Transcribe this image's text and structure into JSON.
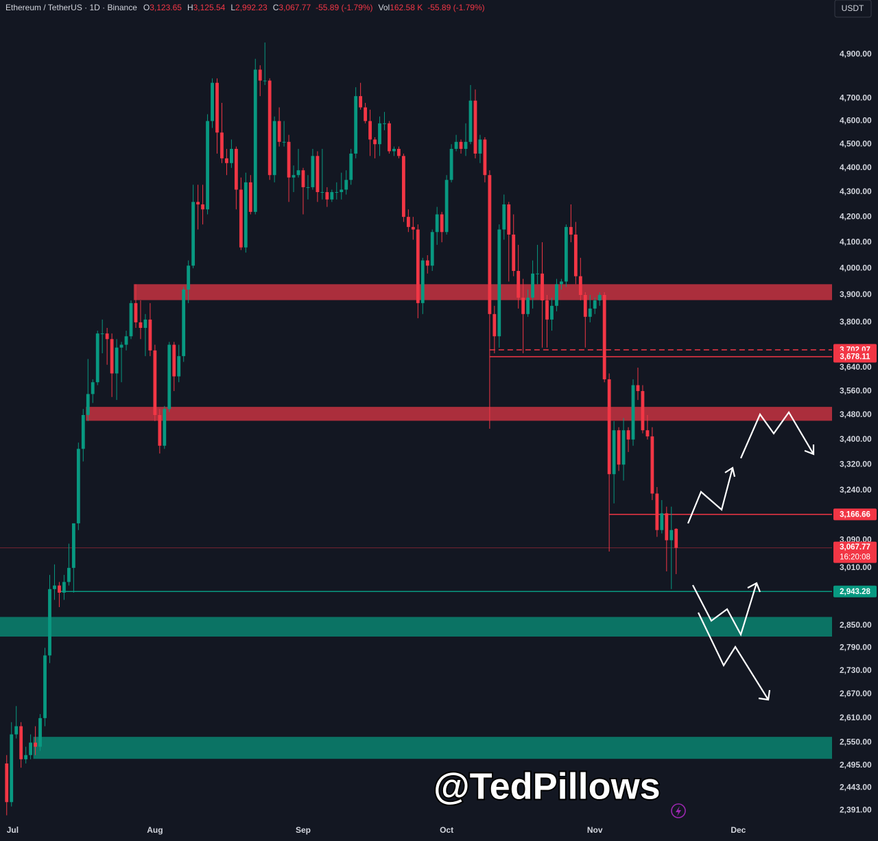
{
  "header": {
    "symbol": "Ethereum / TetherUS · 1D · Binance",
    "fields": [
      {
        "key": "O",
        "value": "3,123.65"
      },
      {
        "key": "H",
        "value": "3,125.54"
      },
      {
        "key": "L",
        "value": "2,992.23"
      },
      {
        "key": "C",
        "value": "3,067.77"
      }
    ],
    "change": "-55.89 (-1.79%)",
    "volume": {
      "key": "Vol",
      "value": "162.58 K"
    },
    "volume_change": "-55.89 (-1.79%)"
  },
  "currency_button": "USDT",
  "watermark": "@TedPillows",
  "chart_data": {
    "type": "candlestick",
    "up_color": "#089981",
    "down_color": "#f23645",
    "log_scale": true,
    "grid": false,
    "x": [
      0,
      1,
      2,
      3,
      4,
      5,
      6,
      7,
      8,
      9,
      10,
      11,
      12,
      13,
      14,
      15,
      16,
      17,
      18,
      19,
      20,
      21,
      22,
      23,
      24,
      25,
      26,
      27,
      28,
      29,
      30,
      31,
      32,
      33,
      34,
      35,
      36,
      37,
      38,
      39,
      40,
      41,
      42,
      43,
      44,
      45,
      46,
      47,
      48,
      49,
      50,
      51,
      52,
      53,
      54,
      55,
      56,
      57,
      58,
      59,
      60,
      61,
      62,
      63,
      64,
      65,
      66,
      67,
      68,
      69,
      70,
      71,
      72,
      73,
      74,
      75,
      76,
      77,
      78,
      79,
      80,
      81,
      82,
      83,
      84,
      85,
      86,
      87,
      88,
      89,
      90,
      91,
      92,
      93,
      94,
      95,
      96,
      97,
      98,
      99,
      100,
      101,
      102,
      103,
      104,
      105,
      106,
      107,
      108,
      109,
      110,
      111,
      112,
      113,
      114,
      115,
      116,
      117,
      118,
      119,
      120,
      121,
      122,
      123,
      124,
      125,
      126,
      127,
      128,
      129,
      130,
      131,
      132,
      133,
      134,
      135,
      136,
      137,
      138,
      139,
      140
    ],
    "candles": [
      [
        2500,
        2520,
        2380,
        2410
      ],
      [
        2410,
        2600,
        2400,
        2570
      ],
      [
        2570,
        2640,
        2560,
        2590
      ],
      [
        2590,
        2600,
        2490,
        2510
      ],
      [
        2510,
        2540,
        2500,
        2520
      ],
      [
        2520,
        2570,
        2510,
        2550
      ],
      [
        2550,
        2590,
        2520,
        2540
      ],
      [
        2540,
        2620,
        2530,
        2610
      ],
      [
        2610,
        2790,
        2590,
        2770
      ],
      [
        2770,
        2990,
        2750,
        2950
      ],
      [
        2950,
        3020,
        2920,
        2960
      ],
      [
        2960,
        2970,
        2900,
        2940
      ],
      [
        2940,
        2990,
        2920,
        2970
      ],
      [
        2970,
        3080,
        2960,
        3010
      ],
      [
        3010,
        3140,
        2940,
        3140
      ],
      [
        3140,
        3390,
        3120,
        3370
      ],
      [
        3370,
        3500,
        3330,
        3480
      ],
      [
        3480,
        3670,
        3460,
        3550
      ],
      [
        3550,
        3600,
        3520,
        3590
      ],
      [
        3590,
        3770,
        3580,
        3760
      ],
      [
        3760,
        3810,
        3690,
        3760
      ],
      [
        3760,
        3780,
        3650,
        3740
      ],
      [
        3740,
        3760,
        3540,
        3620
      ],
      [
        3620,
        3740,
        3530,
        3710
      ],
      [
        3710,
        3730,
        3590,
        3720
      ],
      [
        3720,
        3770,
        3700,
        3750
      ],
      [
        3750,
        3880,
        3740,
        3870
      ],
      [
        3870,
        3940,
        3780,
        3800
      ],
      [
        3800,
        3880,
        3740,
        3780
      ],
      [
        3780,
        3830,
        3680,
        3810
      ],
      [
        3810,
        3870,
        3680,
        3700
      ],
      [
        3700,
        3720,
        3460,
        3480
      ],
      [
        3480,
        3500,
        3355,
        3380
      ],
      [
        3380,
        3510,
        3370,
        3500
      ],
      [
        3500,
        3730,
        3490,
        3720
      ],
      [
        3720,
        3730,
        3560,
        3610
      ],
      [
        3610,
        3720,
        3590,
        3680
      ],
      [
        3680,
        3930,
        3660,
        3920
      ],
      [
        3920,
        4030,
        3870,
        4010
      ],
      [
        4010,
        4330,
        4000,
        4260
      ],
      [
        4260,
        4330,
        4150,
        4250
      ],
      [
        4250,
        4330,
        4170,
        4230
      ],
      [
        4230,
        4630,
        4210,
        4600
      ],
      [
        4600,
        4790,
        4570,
        4770
      ],
      [
        4770,
        4790,
        4460,
        4550
      ],
      [
        4550,
        4680,
        4420,
        4440
      ],
      [
        4440,
        4480,
        4370,
        4420
      ],
      [
        4420,
        4520,
        4400,
        4480
      ],
      [
        4480,
        4490,
        4230,
        4310
      ],
      [
        4310,
        4360,
        4070,
        4080
      ],
      [
        4080,
        4380,
        4060,
        4340
      ],
      [
        4340,
        4370,
        4210,
        4220
      ],
      [
        4220,
        4880,
        4210,
        4830
      ],
      [
        4830,
        4850,
        4710,
        4780
      ],
      [
        4780,
        4956,
        4760,
        4780
      ],
      [
        4780,
        4790,
        4350,
        4370
      ],
      [
        4370,
        4620,
        4340,
        4600
      ],
      [
        4600,
        4660,
        4490,
        4510
      ],
      [
        4510,
        4600,
        4490,
        4510
      ],
      [
        4510,
        4540,
        4260,
        4360
      ],
      [
        4360,
        4410,
        4300,
        4370
      ],
      [
        4370,
        4480,
        4360,
        4390
      ],
      [
        4390,
        4400,
        4210,
        4320
      ],
      [
        4320,
        4370,
        4270,
        4320
      ],
      [
        4320,
        4480,
        4310,
        4450
      ],
      [
        4450,
        4470,
        4260,
        4300
      ],
      [
        4300,
        4480,
        4270,
        4300
      ],
      [
        4300,
        4320,
        4240,
        4270
      ],
      [
        4270,
        4310,
        4260,
        4300
      ],
      [
        4300,
        4340,
        4270,
        4300
      ],
      [
        4300,
        4380,
        4270,
        4310
      ],
      [
        4310,
        4390,
        4290,
        4350
      ],
      [
        4350,
        4480,
        4330,
        4460
      ],
      [
        4460,
        4750,
        4440,
        4710
      ],
      [
        4710,
        4770,
        4650,
        4660
      ],
      [
        4660,
        4680,
        4590,
        4600
      ],
      [
        4600,
        4650,
        4450,
        4520
      ],
      [
        4520,
        4530,
        4440,
        4500
      ],
      [
        4500,
        4620,
        4450,
        4590
      ],
      [
        4590,
        4640,
        4560,
        4590
      ],
      [
        4590,
        4600,
        4460,
        4470
      ],
      [
        4470,
        4490,
        4450,
        4480
      ],
      [
        4480,
        4490,
        4440,
        4450
      ],
      [
        4450,
        4460,
        4180,
        4200
      ],
      [
        4200,
        4230,
        4140,
        4160
      ],
      [
        4160,
        4200,
        4110,
        4150
      ],
      [
        4150,
        4170,
        3815,
        3870
      ],
      [
        3870,
        4040,
        3830,
        4030
      ],
      [
        4030,
        4050,
        3980,
        4010
      ],
      [
        4010,
        4150,
        3990,
        4140
      ],
      [
        4140,
        4240,
        4090,
        4210
      ],
      [
        4210,
        4220,
        4100,
        4140
      ],
      [
        4140,
        4370,
        4130,
        4350
      ],
      [
        4350,
        4500,
        4340,
        4480
      ],
      [
        4480,
        4540,
        4470,
        4510
      ],
      [
        4510,
        4520,
        4460,
        4480
      ],
      [
        4480,
        4590,
        4450,
        4510
      ],
      [
        4510,
        4760,
        4500,
        4690
      ],
      [
        4690,
        4740,
        4440,
        4460
      ],
      [
        4460,
        4540,
        4420,
        4520
      ],
      [
        4520,
        4530,
        4340,
        4370
      ],
      [
        4370,
        4390,
        3435,
        3830
      ],
      [
        3830,
        3860,
        3690,
        3750
      ],
      [
        3750,
        4170,
        3710,
        4150
      ],
      [
        4150,
        4290,
        4110,
        4250
      ],
      [
        4250,
        4260,
        3950,
        4130
      ],
      [
        4130,
        4210,
        3970,
        3990
      ],
      [
        3990,
        4090,
        3850,
        3890
      ],
      [
        3890,
        3960,
        3690,
        3830
      ],
      [
        3830,
        3920,
        3820,
        3890
      ],
      [
        3890,
        4030,
        3850,
        3980
      ],
      [
        3980,
        4090,
        3940,
        3980
      ],
      [
        3980,
        4100,
        3710,
        3880
      ],
      [
        3880,
        3900,
        3710,
        3810
      ],
      [
        3810,
        3890,
        3770,
        3860
      ],
      [
        3860,
        3960,
        3840,
        3940
      ],
      [
        3940,
        3960,
        3920,
        3950
      ],
      [
        3950,
        4170,
        3930,
        4160
      ],
      [
        4160,
        4250,
        4100,
        4130
      ],
      [
        4130,
        4180,
        3940,
        3970
      ],
      [
        3970,
        4040,
        3880,
        3900
      ],
      [
        3900,
        3910,
        3710,
        3820
      ],
      [
        3820,
        3900,
        3800,
        3850
      ],
      [
        3850,
        3890,
        3830,
        3880
      ],
      [
        3880,
        3910,
        3860,
        3900
      ],
      [
        3900,
        3910,
        3590,
        3600
      ],
      [
        3600,
        3620,
        3057,
        3290
      ],
      [
        3290,
        3460,
        3200,
        3430
      ],
      [
        3430,
        3440,
        3300,
        3320
      ],
      [
        3320,
        3470,
        3270,
        3430
      ],
      [
        3430,
        3440,
        3360,
        3400
      ],
      [
        3400,
        3600,
        3380,
        3580
      ],
      [
        3580,
        3640,
        3530,
        3560
      ],
      [
        3560,
        3580,
        3420,
        3430
      ],
      [
        3430,
        3480,
        3400,
        3410
      ],
      [
        3410,
        3440,
        3210,
        3230
      ],
      [
        3230,
        3250,
        3100,
        3120
      ],
      [
        3120,
        3210,
        3110,
        3170
      ],
      [
        3170,
        3190,
        3000,
        3090
      ],
      [
        3090,
        3190,
        2950,
        3120
      ],
      [
        3123.65,
        3125.54,
        2992.23,
        3067.77
      ]
    ],
    "xlim": [
      -1.4,
      172.6
    ],
    "xticks": [
      {
        "value": 0,
        "label": "Jul"
      },
      {
        "value": 31,
        "label": "Aug"
      },
      {
        "value": 62,
        "label": "Sep"
      },
      {
        "value": 92,
        "label": "Oct"
      },
      {
        "value": 123,
        "label": "Nov"
      },
      {
        "value": 153,
        "label": "Dec"
      }
    ],
    "ylim": [
      2370,
      5160
    ],
    "yticks": [
      {
        "value": 4900,
        "label": "4,900.00"
      },
      {
        "value": 4700,
        "label": "4,700.00"
      },
      {
        "value": 4600,
        "label": "4,600.00"
      },
      {
        "value": 4500,
        "label": "4,500.00"
      },
      {
        "value": 4400,
        "label": "4,400.00"
      },
      {
        "value": 4300,
        "label": "4,300.00"
      },
      {
        "value": 4200,
        "label": "4,200.00"
      },
      {
        "value": 4100,
        "label": "4,100.00"
      },
      {
        "value": 4000,
        "label": "4,000.00"
      },
      {
        "value": 3900,
        "label": "3,900.00"
      },
      {
        "value": 3800,
        "label": "3,800.00"
      },
      {
        "value": 3640,
        "label": "3,640.00"
      },
      {
        "value": 3560,
        "label": "3,560.00"
      },
      {
        "value": 3480,
        "label": "3,480.00"
      },
      {
        "value": 3400,
        "label": "3,400.00"
      },
      {
        "value": 3320,
        "label": "3,320.00"
      },
      {
        "value": 3240,
        "label": "3,240.00"
      },
      {
        "value": 3090,
        "label": "3,090.00"
      },
      {
        "value": 3010,
        "label": "3,010.00"
      },
      {
        "value": 2850,
        "label": "2,850.00"
      },
      {
        "value": 2790,
        "label": "2,790.00"
      },
      {
        "value": 2730,
        "label": "2,730.00"
      },
      {
        "value": 2670,
        "label": "2,670.00"
      },
      {
        "value": 2610,
        "label": "2,610.00"
      },
      {
        "value": 2550,
        "label": "2,550.00"
      },
      {
        "value": 2495,
        "label": "2,495.00"
      },
      {
        "value": 2443,
        "label": "2,443.00"
      },
      {
        "value": 2391,
        "label": "2,391.00"
      }
    ],
    "zones": [
      {
        "range": [
          3881,
          3940
        ],
        "color": "#b8313f"
      },
      {
        "range": [
          3461,
          3507
        ],
        "color": "#b8313f"
      },
      {
        "range": [
          2820,
          2873
        ],
        "color": "#0b7c6a"
      },
      {
        "range": [
          2511,
          2564
        ],
        "color": "#0b7c6a"
      }
    ],
    "levels": [
      {
        "value": 3702.07,
        "label": "3,702.07",
        "color": "#f23645",
        "style": "dashed"
      },
      {
        "value": 3678.11,
        "label": "3,678.11",
        "color": "#f23645",
        "style": "solid"
      },
      {
        "value": 3166.66,
        "label": "3,166.66",
        "color": "#f23645",
        "style": "solid"
      },
      {
        "value": 2943.28,
        "label": "2,943.28",
        "color": "#089981",
        "style": "solid"
      }
    ],
    "last_price": {
      "value": 3067.77,
      "label": "3,067.77",
      "countdown": "16:20:08",
      "color": "#f23645"
    }
  }
}
